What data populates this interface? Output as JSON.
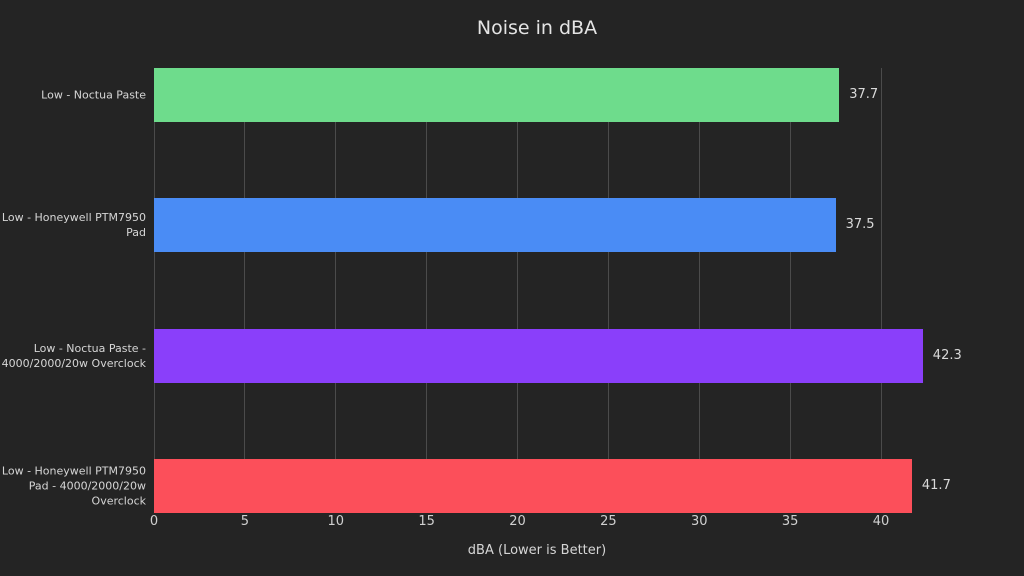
{
  "chart_data": {
    "type": "bar",
    "orientation": "horizontal",
    "title": "Noise in dBA",
    "xlabel": "dBA (Lower is Better)",
    "categories": [
      "Low - Noctua Paste",
      "Low - Honeywell PTM7950 Pad",
      "Low - Noctua Paste - 4000/2000/20w Overclock",
      "Low - Honeywell PTM7950 Pad - 4000/2000/20w Overclock"
    ],
    "category_lines": [
      [
        "Low - Noctua Paste"
      ],
      [
        "Low - Honeywell PTM7950",
        "Pad"
      ],
      [
        "Low - Noctua Paste -",
        "4000/2000/20w Overclock"
      ],
      [
        "Low - Honeywell PTM7950",
        "Pad - 4000/2000/20w",
        "Overclock"
      ]
    ],
    "values": [
      37.7,
      37.5,
      42.3,
      41.7
    ],
    "value_labels": [
      "37.7",
      "37.5",
      "42.3",
      "41.7"
    ],
    "bar_colors": [
      "#6edc8c",
      "#4a8cf5",
      "#8a3ffa",
      "#fc4f5a"
    ],
    "xlim": [
      0,
      46
    ],
    "xticks": [
      0,
      5,
      10,
      15,
      20,
      25,
      30,
      35,
      40
    ],
    "grid": "vertical",
    "legend": "none",
    "colors": {
      "background": "#242424",
      "gridline": "#4b4b4b",
      "title_text": "#e4e4e4",
      "label_text": "#d6d6d6",
      "tick_text": "#d0d0d0",
      "value_text": "#d9d9d9"
    }
  }
}
